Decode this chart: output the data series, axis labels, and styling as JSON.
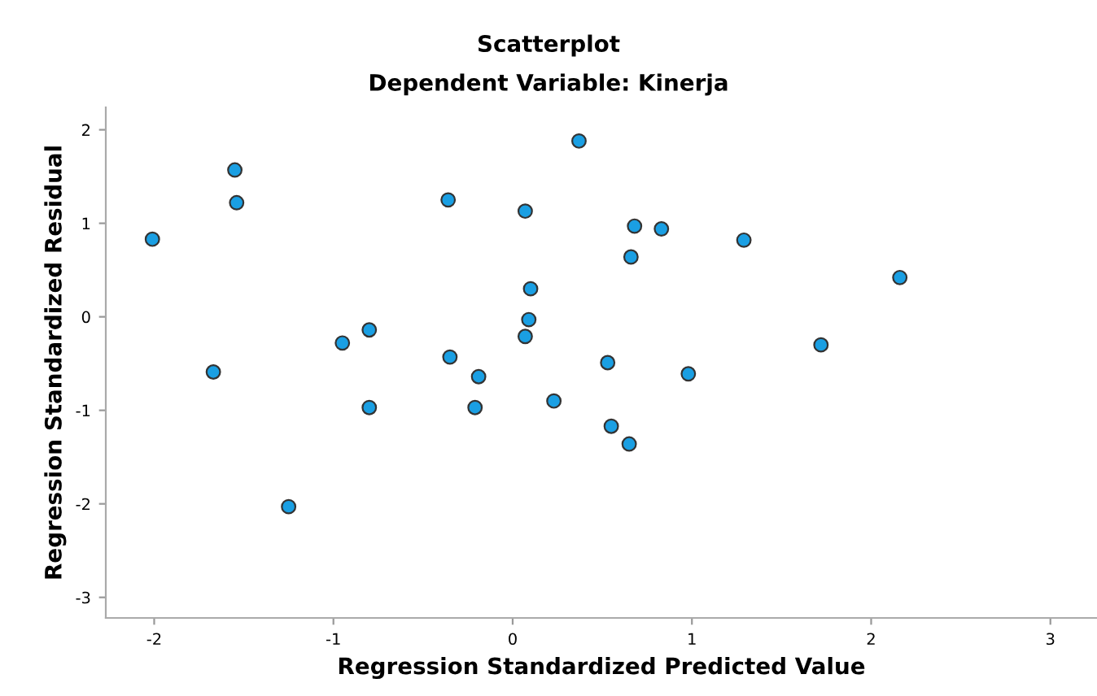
{
  "chart_data": {
    "type": "scatter",
    "title": "Scatterplot",
    "subtitle": "Dependent Variable: Kinerja",
    "xlabel": "Regression Standardized Predicted Value",
    "ylabel": "Regression Standardized Residual",
    "x": [
      -2.01,
      -1.55,
      -1.54,
      -1.67,
      -1.25,
      -0.95,
      -0.8,
      -0.8,
      -0.36,
      -0.35,
      -0.19,
      -0.21,
      0.07,
      0.1,
      0.09,
      0.07,
      0.37,
      0.23,
      0.53,
      0.55,
      0.65,
      0.66,
      0.68,
      0.83,
      0.98,
      1.29,
      1.72,
      2.16
    ],
    "series": [
      {
        "color": "#1a9fe3",
        "values": [
          0.83,
          1.57,
          1.22,
          -0.59,
          -2.03,
          -0.28,
          -0.14,
          -0.97,
          1.25,
          -0.43,
          -0.64,
          -0.97,
          1.13,
          0.3,
          -0.03,
          -0.21,
          1.88,
          -0.9,
          -0.49,
          -1.17,
          -1.36,
          0.64,
          0.97,
          0.94,
          -0.61,
          0.82,
          -0.3,
          0.42
        ]
      }
    ],
    "xlim": [
      -2.27,
      3.26
    ],
    "ylim": [
      -3.22,
      2.24
    ],
    "xticks": [
      -2,
      -1,
      0,
      1,
      2,
      3
    ],
    "yticks": [
      -3,
      -2,
      -1,
      0,
      1,
      2
    ],
    "marker": "circle",
    "grid": false,
    "legend": false
  }
}
